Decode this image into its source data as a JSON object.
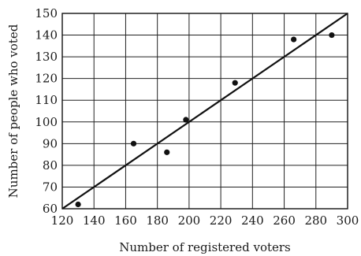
{
  "chart_data": {
    "type": "scatter",
    "title": "",
    "xlabel": "Number of registered voters",
    "ylabel": "Number of people who voted",
    "xlim": [
      120,
      300
    ],
    "ylim": [
      60,
      150
    ],
    "x_ticks": [
      120,
      140,
      160,
      180,
      200,
      220,
      240,
      260,
      280,
      300
    ],
    "y_ticks": [
      60,
      70,
      80,
      90,
      100,
      110,
      120,
      130,
      140,
      150
    ],
    "grid": true,
    "series": [
      {
        "x": [
          130,
          165,
          186,
          198,
          229,
          266,
          290
        ],
        "y": [
          62,
          90,
          86,
          101,
          118,
          138,
          140
        ]
      }
    ],
    "line_of_best_fit": {
      "start": [
        120,
        60
      ],
      "end": [
        300,
        150
      ]
    }
  }
}
